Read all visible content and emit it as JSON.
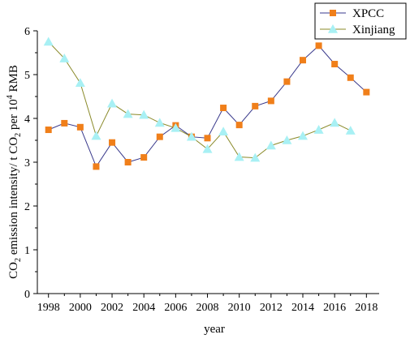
{
  "chart_data": {
    "type": "line",
    "title": "",
    "xlabel": "year",
    "ylabel": {
      "prefix": "CO",
      "prefix_sub": "2",
      "middle": " emission intensity/ t CO",
      "middle_sub": "2",
      "after": " per 10",
      "sup": "4",
      "suffix": " RMB"
    },
    "xlim": [
      1997.3,
      2018.8
    ],
    "ylim": [
      0,
      6
    ],
    "x_ticks": [
      "1998",
      "2000",
      "2002",
      "2004",
      "2006",
      "2008",
      "2010",
      "2012",
      "2014",
      "2016",
      "2018"
    ],
    "y_ticks": [
      "0",
      "1",
      "2",
      "3",
      "4",
      "5",
      "6"
    ],
    "legend_position": "top-right",
    "series": [
      {
        "name": "XPCC",
        "line_color": "#3a3a8c",
        "marker_color": "#f07f1a",
        "marker": "square",
        "x": [
          1998,
          1999,
          2000,
          2001,
          2002,
          2003,
          2004,
          2005,
          2006,
          2007,
          2008,
          2009,
          2010,
          2011,
          2012,
          2013,
          2014,
          2015,
          2016,
          2017,
          2018
        ],
        "values": [
          3.74,
          3.89,
          3.8,
          2.9,
          3.45,
          3.0,
          3.11,
          3.58,
          3.84,
          3.58,
          3.55,
          4.24,
          3.85,
          4.28,
          4.4,
          4.84,
          5.33,
          5.66,
          5.24,
          4.93,
          4.6
        ]
      },
      {
        "name": "Xinjiang",
        "line_color": "#8a8a2a",
        "marker_color": "#a8f0f4",
        "marker": "triangle",
        "x": [
          1998,
          1999,
          2000,
          2001,
          2002,
          2003,
          2004,
          2005,
          2006,
          2007,
          2008,
          2009,
          2010,
          2011,
          2012,
          2013,
          2014,
          2015,
          2016,
          2017
        ],
        "values": [
          5.75,
          5.37,
          4.81,
          3.6,
          4.34,
          4.1,
          4.08,
          3.9,
          3.78,
          3.58,
          3.3,
          3.7,
          3.12,
          3.1,
          3.38,
          3.5,
          3.6,
          3.74,
          3.9,
          3.72
        ]
      }
    ]
  }
}
